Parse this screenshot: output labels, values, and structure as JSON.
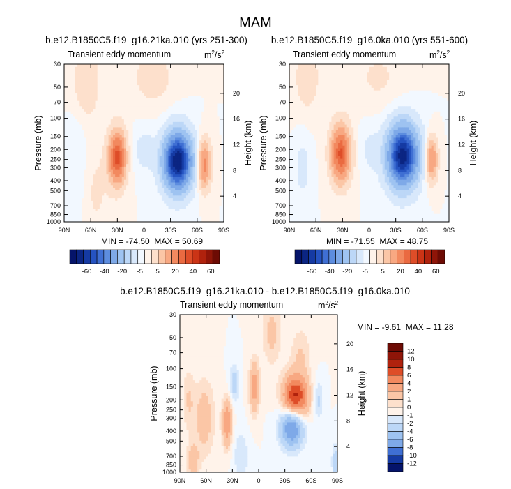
{
  "title": "MAM",
  "colors": {
    "neg": [
      "#f2f8ff",
      "#d8e8fb",
      "#bcd7f7",
      "#9ec3f1",
      "#7ea9e8",
      "#5d8ddf",
      "#3f6fd3",
      "#2553c1",
      "#153aa3",
      "#0b2582",
      "#05146a"
    ],
    "pos": [
      "#fff3ea",
      "#fde0cc",
      "#fbc6a6",
      "#f8a882",
      "#f2895f",
      "#ea6a41",
      "#de4d28",
      "#cb3416",
      "#b0220d",
      "#8f1508",
      "#6d0b04"
    ]
  },
  "colorbar": {
    "top_labels": [
      "-60",
      "-40",
      "-20",
      "-5",
      "5",
      "20",
      "40",
      "60"
    ],
    "bottom_labels": [
      "12",
      "10",
      "8",
      "6",
      "4",
      "2",
      "1",
      "0",
      "-1",
      "-2",
      "-4",
      "-6",
      "-8",
      "-10",
      "-12"
    ]
  },
  "chart_data": [
    {
      "type": "heatmap",
      "subplot_title": "b.e12.B1850C5.f19_g16.21ka.010 (yrs 251-300)",
      "left_string": "Transient eddy momentum",
      "units": "m²/s²",
      "units_base": "m",
      "units_sup1": "2",
      "units_mid": "/s",
      "units_sup2": "2",
      "ylabel": "Pressure (mb)",
      "y2label": "Height (km)",
      "xticks": [
        "90N",
        "60N",
        "30N",
        "0",
        "30S",
        "60S",
        "90S"
      ],
      "xtick_values": [
        90,
        60,
        30,
        0,
        -30,
        -60,
        -90
      ],
      "yticks": [
        "30",
        "50",
        "70",
        "100",
        "150",
        "200",
        "250",
        "300",
        "400",
        "500",
        "700",
        "850",
        "1000"
      ],
      "ytick_values": [
        30,
        50,
        70,
        100,
        150,
        200,
        250,
        300,
        400,
        500,
        700,
        850,
        1000
      ],
      "y2ticks": [
        "20",
        "16",
        "12",
        "8",
        "4"
      ],
      "y2tick_values": [
        20,
        16,
        12,
        8,
        4
      ],
      "min": -74.5,
      "max": 50.69,
      "min_text": "MIN = -74.50",
      "max_text": "MAX = 50.69",
      "contour_levels": [
        -60,
        -40,
        -20,
        -5,
        5,
        20,
        40,
        60
      ],
      "features": [
        {
          "lat": 30,
          "p": 240,
          "value": 50,
          "dlat": 7,
          "dp": 0.42
        },
        {
          "lat": -38,
          "p": 260,
          "value": -74,
          "dlat": 12,
          "dp": 0.47
        },
        {
          "lat": -68,
          "p": 280,
          "value": 36,
          "dlat": 5,
          "dp": 0.38
        },
        {
          "lat": 65,
          "p": 45,
          "value": 12,
          "dlat": 10,
          "dp": 0.55
        },
        {
          "lat": -10,
          "p": 40,
          "value": 8,
          "dlat": 18,
          "dp": 0.5
        },
        {
          "lat": 0,
          "p": 200,
          "value": -8,
          "dlat": 8,
          "dp": 0.35
        },
        {
          "lat": 75,
          "p": 300,
          "value": -6,
          "dlat": 8,
          "dp": 0.8
        },
        {
          "lat": 55,
          "p": 500,
          "value": 6,
          "dlat": 12,
          "dp": 0.8
        }
      ]
    },
    {
      "type": "heatmap",
      "subplot_title": "b.e12.B1850C5.f19_g16.0ka.010 (yrs 551-600)",
      "left_string": "Transient eddy momentum",
      "units": "m²/s²",
      "units_base": "m",
      "units_sup1": "2",
      "units_mid": "/s",
      "units_sup2": "2",
      "ylabel": "Pressure (mb)",
      "y2label": "Height (km)",
      "xticks": [
        "90N",
        "60N",
        "30N",
        "0",
        "30S",
        "60S",
        "90S"
      ],
      "xtick_values": [
        90,
        60,
        30,
        0,
        -30,
        -60,
        -90
      ],
      "yticks": [
        "30",
        "50",
        "70",
        "100",
        "150",
        "200",
        "250",
        "300",
        "400",
        "500",
        "700",
        "850",
        "1000"
      ],
      "ytick_values": [
        30,
        50,
        70,
        100,
        150,
        200,
        250,
        300,
        400,
        500,
        700,
        850,
        1000
      ],
      "y2ticks": [
        "20",
        "16",
        "12",
        "8",
        "4"
      ],
      "y2tick_values": [
        20,
        16,
        12,
        8,
        4
      ],
      "min": -71.55,
      "max": 48.75,
      "min_text": "MIN = -71.55",
      "max_text": "MAX = 48.75",
      "contour_levels": [
        -60,
        -40,
        -20,
        -5,
        5,
        20,
        40,
        60
      ],
      "features": [
        {
          "lat": 32,
          "p": 220,
          "value": 48,
          "dlat": 8,
          "dp": 0.45
        },
        {
          "lat": -38,
          "p": 230,
          "value": -71,
          "dlat": 13,
          "dp": 0.5
        },
        {
          "lat": -70,
          "p": 250,
          "value": 32,
          "dlat": 5,
          "dp": 0.35
        },
        {
          "lat": 70,
          "p": 40,
          "value": 10,
          "dlat": 10,
          "dp": 0.55
        },
        {
          "lat": -10,
          "p": 40,
          "value": 6,
          "dlat": 20,
          "dp": 0.5
        },
        {
          "lat": 0,
          "p": 200,
          "value": -6,
          "dlat": 8,
          "dp": 0.4
        },
        {
          "lat": 75,
          "p": 300,
          "value": -8,
          "dlat": 6,
          "dp": 0.5
        }
      ]
    },
    {
      "type": "heatmap",
      "subplot_title": "b.e12.B1850C5.f19_g16.21ka.010 - b.e12.B1850C5.f19_g16.0ka.010",
      "left_string": "Transient eddy momentum",
      "units": "m²/s²",
      "units_base": "m",
      "units_sup1": "2",
      "units_mid": "/s",
      "units_sup2": "2",
      "ylabel": "Pressure (mb)",
      "y2label": "Height (km)",
      "xticks": [
        "90N",
        "60N",
        "30N",
        "0",
        "30S",
        "60S",
        "90S"
      ],
      "xtick_values": [
        90,
        60,
        30,
        0,
        -30,
        -60,
        -90
      ],
      "yticks": [
        "30",
        "50",
        "70",
        "100",
        "150",
        "200",
        "250",
        "300",
        "400",
        "500",
        "700",
        "850",
        "1000"
      ],
      "ytick_values": [
        30,
        50,
        70,
        100,
        150,
        200,
        250,
        300,
        400,
        500,
        700,
        850,
        1000
      ],
      "y2ticks": [
        "20",
        "16",
        "12",
        "8",
        "4"
      ],
      "y2tick_values": [
        20,
        16,
        12,
        8,
        4
      ],
      "min": -9.61,
      "max": 11.28,
      "min_text": "MIN =  -9.61",
      "max_text": "MAX = 11.28",
      "contour_levels": [
        -12,
        -10,
        -8,
        -6,
        -4,
        -2,
        -1,
        0,
        1,
        2,
        4,
        6,
        8,
        10,
        12
      ],
      "features": [
        {
          "lat": -42,
          "p": 190,
          "value": 11,
          "dlat": 10,
          "dp": 0.35
        },
        {
          "lat": -38,
          "p": 360,
          "value": -9.6,
          "dlat": 9,
          "dp": 0.32
        },
        {
          "lat": 36,
          "p": 330,
          "value": 6,
          "dlat": 4,
          "dp": 0.38
        },
        {
          "lat": 5,
          "p": 150,
          "value": 5,
          "dlat": 4,
          "dp": 0.4
        },
        {
          "lat": 28,
          "p": 140,
          "value": -3,
          "dlat": 4,
          "dp": 0.3
        },
        {
          "lat": 62,
          "p": 300,
          "value": 3,
          "dlat": 8,
          "dp": 0.6
        },
        {
          "lat": 80,
          "p": 200,
          "value": 2,
          "dlat": 5,
          "dp": 0.5
        },
        {
          "lat": -68,
          "p": 200,
          "value": -2.5,
          "dlat": 4,
          "dp": 0.3
        },
        {
          "lat": -15,
          "p": 45,
          "value": 2.5,
          "dlat": 8,
          "dp": 0.5
        },
        {
          "lat": -48,
          "p": 70,
          "value": 2,
          "dlat": 8,
          "dp": 0.4
        },
        {
          "lat": 20,
          "p": 700,
          "value": -2,
          "dlat": 6,
          "dp": 0.4
        },
        {
          "lat": 75,
          "p": 800,
          "value": 3,
          "dlat": 5,
          "dp": 0.3
        },
        {
          "lat": -88,
          "p": 800,
          "value": -3,
          "dlat": 3,
          "dp": 0.3
        }
      ]
    }
  ]
}
